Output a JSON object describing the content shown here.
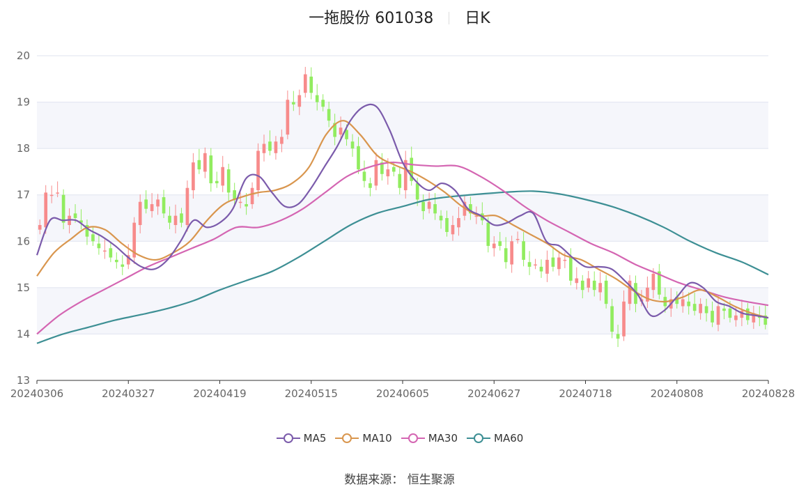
{
  "title": "一拖股份 601038",
  "period": "日K",
  "source_label": "数据来源：",
  "source_name": "恒生聚源",
  "colors": {
    "up": "#f78b8b",
    "down": "#91ec5f",
    "MA5": "#7b5bab",
    "MA10": "#d9964e",
    "MA30": "#d465b2",
    "MA60": "#3d8f94",
    "grid": "#dfe3ef",
    "band": "#f5f6fb"
  },
  "chart_data": {
    "type": "candlestick",
    "title": "一拖股份 601038 日K",
    "ylim": [
      13,
      20
    ],
    "yticks": [
      13,
      14,
      15,
      16,
      17,
      18,
      19,
      20
    ],
    "x_ticks": [
      "20240306",
      "20240327",
      "20240419",
      "20240515",
      "20240605",
      "20240627",
      "20240718",
      "20240808",
      "20240828"
    ],
    "legend": [
      "MA5",
      "MA10",
      "MA30",
      "MA60"
    ],
    "closes": [
      16.35,
      17.05,
      17.0,
      17.05,
      16.4,
      16.55,
      16.5,
      16.4,
      16.1,
      16.0,
      15.85,
      15.8,
      15.65,
      15.55,
      15.45,
      15.7,
      16.4,
      16.85,
      16.7,
      16.8,
      16.9,
      16.6,
      16.4,
      16.55,
      16.4,
      17.15,
      17.7,
      17.55,
      17.9,
      17.25,
      17.25,
      17.6,
      17.05,
      16.9,
      16.85,
      16.75,
      17.15,
      17.95,
      18.1,
      17.95,
      18.15,
      18.25,
      19.05,
      18.95,
      19.15,
      19.6,
      19.2,
      19.0,
      18.9,
      18.6,
      18.25,
      18.45,
      18.2,
      18.0,
      17.55,
      17.3,
      17.15,
      17.75,
      17.45,
      17.55,
      17.5,
      17.15,
      17.75,
      17.3,
      16.9,
      16.65,
      16.85,
      16.6,
      16.45,
      16.2,
      16.35,
      16.5,
      16.85,
      16.6,
      16.55,
      16.45,
      15.9,
      15.95,
      15.9,
      15.55,
      16.0,
      16.05,
      15.6,
      15.45,
      15.5,
      15.35,
      15.6,
      15.45,
      15.65,
      15.6,
      15.15,
      15.2,
      14.95,
      15.2,
      14.95,
      15.1,
      14.65,
      14.05,
      13.9,
      14.7,
      15.15,
      14.65,
      14.75,
      15.0,
      15.3,
      14.85,
      14.6,
      14.75,
      14.65,
      14.75,
      14.6,
      14.5,
      14.65,
      14.45,
      14.25,
      14.6,
      14.5,
      14.35,
      14.4,
      14.5,
      14.3,
      14.45,
      14.35,
      14.2
    ],
    "MA5": [
      15.7,
      16.45,
      16.45,
      16.45,
      16.25,
      16.1,
      15.9,
      15.65,
      15.45,
      15.4,
      15.6,
      16.0,
      16.45,
      16.3,
      16.4,
      16.7,
      17.35,
      17.4,
      17.05,
      16.75,
      16.8,
      17.15,
      17.6,
      18.05,
      18.6,
      18.9,
      18.9,
      18.4,
      17.7,
      17.3,
      17.1,
      17.25,
      17.1,
      16.7,
      16.55,
      16.35,
      16.4,
      16.55,
      16.6,
      16.0,
      15.9,
      15.65,
      15.45,
      15.45,
      15.4,
      15.15,
      14.85,
      14.4,
      14.5,
      14.8,
      15.1,
      15.0,
      14.7,
      14.6,
      14.45,
      14.4,
      14.35
    ],
    "MA10": [
      15.25,
      15.75,
      16.05,
      16.3,
      16.25,
      15.95,
      15.7,
      15.6,
      15.75,
      16.0,
      16.45,
      16.8,
      16.95,
      17.05,
      17.1,
      17.25,
      17.6,
      18.3,
      18.6,
      18.3,
      17.85,
      17.65,
      17.5,
      17.3,
      17.05,
      16.75,
      16.55,
      16.55,
      16.35,
      16.15,
      15.95,
      15.7,
      15.6,
      15.4,
      15.2,
      14.95,
      14.75,
      14.7,
      14.8,
      14.95,
      14.8,
      14.6,
      14.45,
      14.35
    ],
    "MA30": [
      14.0,
      14.4,
      14.7,
      14.95,
      15.2,
      15.45,
      15.65,
      15.85,
      16.05,
      16.3,
      16.3,
      16.45,
      16.7,
      17.05,
      17.4,
      17.6,
      17.7,
      17.65,
      17.62,
      17.62,
      17.4,
      17.1,
      16.75,
      16.45,
      16.2,
      15.95,
      15.75,
      15.5,
      15.3,
      15.1,
      14.95,
      14.8,
      14.7,
      14.62
    ],
    "MA60": [
      13.8,
      14.0,
      14.15,
      14.3,
      14.42,
      14.55,
      14.72,
      14.95,
      15.15,
      15.35,
      15.65,
      16.0,
      16.35,
      16.6,
      16.75,
      16.9,
      16.97,
      17.02,
      17.06,
      17.08,
      17.02,
      16.9,
      16.75,
      16.55,
      16.3,
      16.0,
      15.75,
      15.55,
      15.28
    ]
  }
}
